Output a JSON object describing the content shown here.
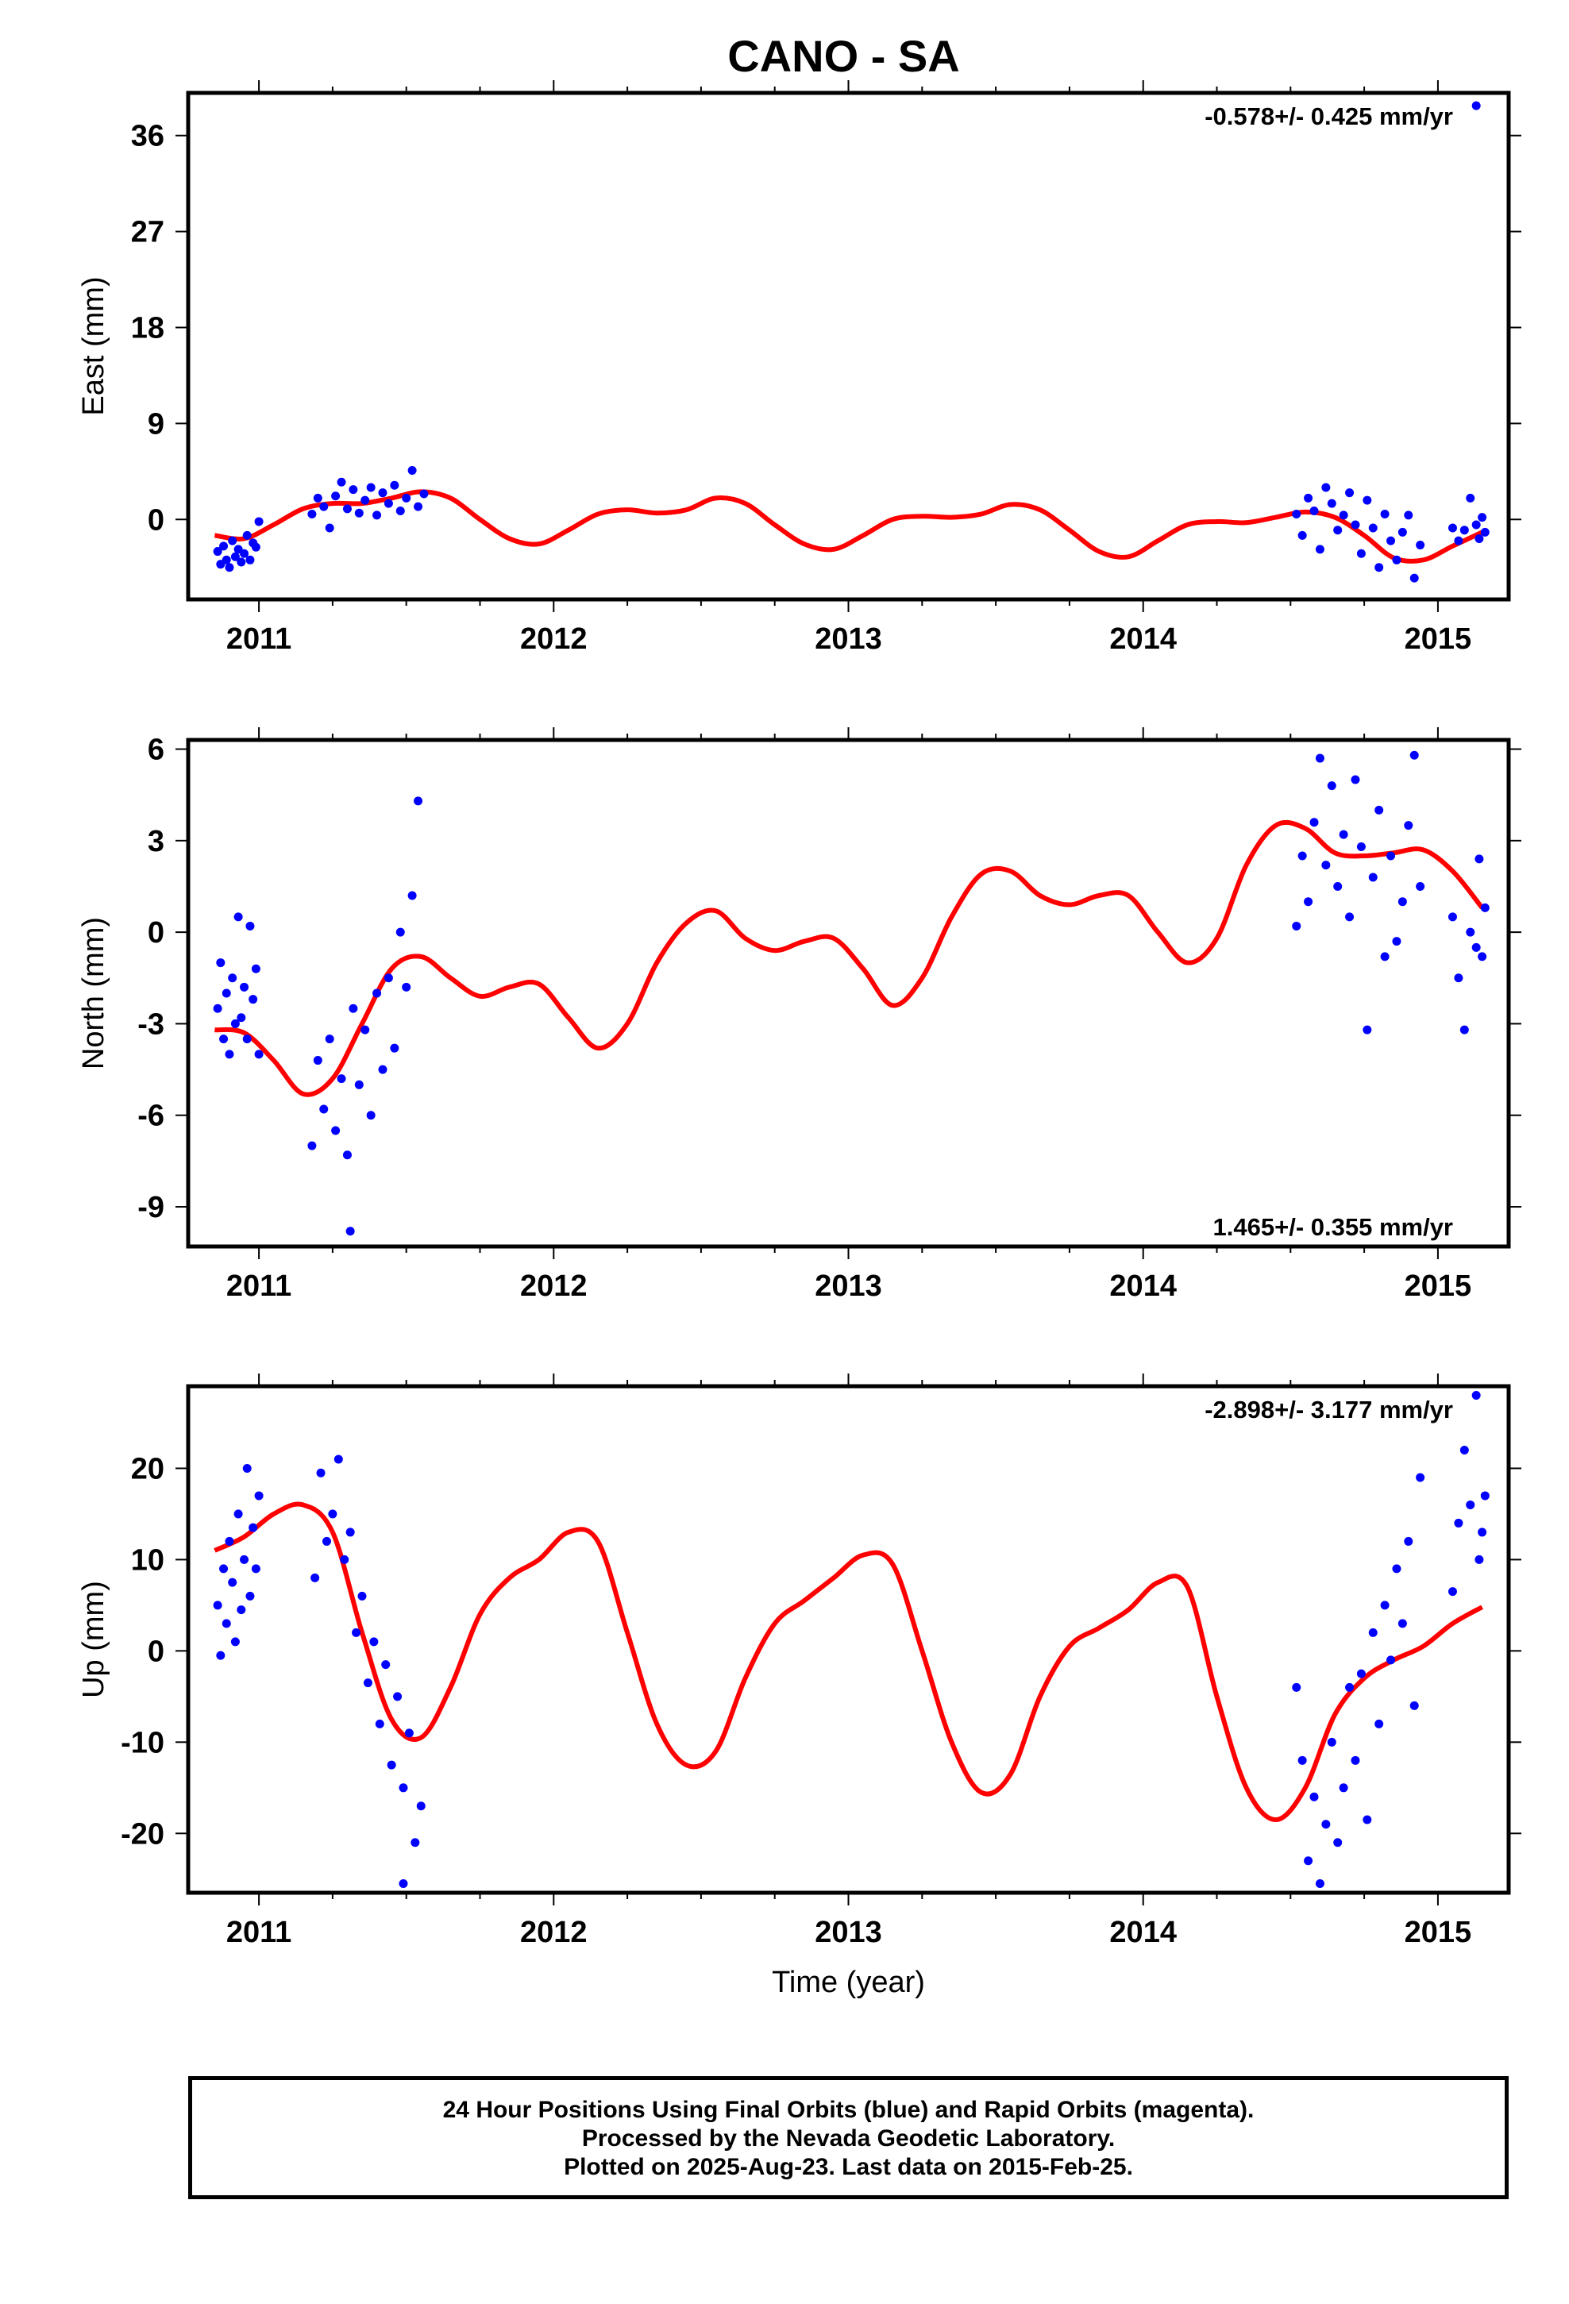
{
  "title": "CANO - SA",
  "chart_data": [
    {
      "type": "scatter",
      "ylabel": "East (mm)",
      "rate": "-0.578+/- 0.425 mm/yr",
      "rate_position": "top-right",
      "ylim": [
        -7.5,
        40
      ],
      "xlim": [
        2010.76,
        2015.24
      ],
      "yticks": [
        0,
        9,
        18,
        27,
        36
      ],
      "xticks": [
        2011,
        2012,
        2013,
        2014,
        2015
      ],
      "xlabel": "",
      "series": [
        {
          "role": "model fit",
          "color": "#ff0000",
          "x": [
            2010.85,
            2010.95,
            2011.05,
            2011.15,
            2011.25,
            2011.35,
            2011.45,
            2011.55,
            2011.65,
            2011.75,
            2011.85,
            2011.95,
            2012.05,
            2012.15,
            2012.25,
            2012.35,
            2012.45,
            2012.55,
            2012.65,
            2012.75,
            2012.85,
            2012.95,
            2013.05,
            2013.15,
            2013.25,
            2013.35,
            2013.45,
            2013.55,
            2013.65,
            2013.75,
            2013.85,
            2013.95,
            2014.05,
            2014.15,
            2014.25,
            2014.35,
            2014.45,
            2014.55,
            2014.65,
            2014.75,
            2014.85,
            2014.95,
            2015.05,
            2015.15
          ],
          "y": [
            -1.5,
            -1.8,
            -0.5,
            1.0,
            1.5,
            1.5,
            2.0,
            2.6,
            2.0,
            0.0,
            -1.8,
            -2.3,
            -1.0,
            0.5,
            0.9,
            0.6,
            0.9,
            2.0,
            1.5,
            -0.5,
            -2.3,
            -2.8,
            -1.5,
            0.0,
            0.3,
            0.2,
            0.5,
            1.4,
            0.9,
            -1.0,
            -3.0,
            -3.5,
            -2.0,
            -0.5,
            -0.2,
            -0.3,
            0.2,
            0.7,
            0.2,
            -1.5,
            -3.6,
            -3.8,
            -2.5,
            -1.2
          ]
        },
        {
          "role": "daily positions",
          "color": "#0000ff",
          "x": [
            2010.86,
            2010.87,
            2010.88,
            2010.89,
            2010.9,
            2010.91,
            2010.92,
            2010.93,
            2010.94,
            2010.95,
            2010.96,
            2010.97,
            2010.98,
            2010.99,
            2011.0,
            2011.18,
            2011.2,
            2011.22,
            2011.24,
            2011.26,
            2011.28,
            2011.3,
            2011.32,
            2011.34,
            2011.36,
            2011.38,
            2011.4,
            2011.42,
            2011.44,
            2011.46,
            2011.48,
            2011.5,
            2011.52,
            2011.54,
            2011.56,
            2014.52,
            2014.54,
            2014.56,
            2014.58,
            2014.6,
            2014.62,
            2014.64,
            2014.66,
            2014.68,
            2014.7,
            2014.72,
            2014.74,
            2014.76,
            2014.78,
            2014.8,
            2014.82,
            2014.84,
            2014.86,
            2014.88,
            2014.9,
            2014.92,
            2014.94,
            2015.05,
            2015.07,
            2015.09,
            2015.11,
            2015.13,
            2015.14,
            2015.15,
            2015.16
          ],
          "y": [
            -3.0,
            -4.2,
            -2.5,
            -3.8,
            -4.5,
            -2.0,
            -3.5,
            -2.8,
            -4.0,
            -3.2,
            -1.5,
            -3.8,
            -2.2,
            -2.6,
            -0.2,
            0.5,
            2.0,
            1.2,
            -0.8,
            2.2,
            3.5,
            1.0,
            2.8,
            0.6,
            1.8,
            3.0,
            0.4,
            2.5,
            1.5,
            3.2,
            0.8,
            2.0,
            4.6,
            1.2,
            2.4,
            0.5,
            -1.5,
            2.0,
            0.8,
            -2.8,
            3.0,
            1.5,
            -1.0,
            0.4,
            2.5,
            -0.5,
            -3.2,
            1.8,
            -0.8,
            -4.5,
            0.5,
            -2.0,
            -3.8,
            -1.2,
            0.4,
            -5.5,
            -2.4,
            -0.8,
            -2.0,
            -1.0,
            2.0,
            -0.5,
            -1.8,
            0.2,
            -1.2
          ]
        },
        {
          "role": "outlier",
          "color": "#0000ff",
          "x": [
            2015.13
          ],
          "y": [
            38.8
          ]
        }
      ]
    },
    {
      "type": "scatter",
      "ylabel": "North (mm)",
      "rate": "1.465+/- 0.355 mm/yr",
      "rate_position": "bottom-right",
      "ylim": [
        -10.3,
        6.3
      ],
      "xlim": [
        2010.76,
        2015.24
      ],
      "yticks": [
        -9,
        -6,
        -3,
        0,
        3,
        6
      ],
      "xticks": [
        2011,
        2012,
        2013,
        2014,
        2015
      ],
      "xlabel": "",
      "series": [
        {
          "role": "model fit",
          "color": "#ff0000",
          "x": [
            2010.85,
            2010.95,
            2011.05,
            2011.15,
            2011.25,
            2011.35,
            2011.45,
            2011.55,
            2011.65,
            2011.75,
            2011.85,
            2011.95,
            2012.05,
            2012.15,
            2012.25,
            2012.35,
            2012.45,
            2012.55,
            2012.65,
            2012.75,
            2012.85,
            2012.95,
            2013.05,
            2013.15,
            2013.25,
            2013.35,
            2013.45,
            2013.55,
            2013.65,
            2013.75,
            2013.85,
            2013.95,
            2014.05,
            2014.15,
            2014.25,
            2014.35,
            2014.45,
            2014.55,
            2014.65,
            2014.75,
            2014.85,
            2014.95,
            2015.05,
            2015.15
          ],
          "y": [
            -3.2,
            -3.3,
            -4.2,
            -5.3,
            -4.8,
            -3.0,
            -1.2,
            -0.8,
            -1.5,
            -2.1,
            -1.8,
            -1.7,
            -2.8,
            -3.8,
            -3.0,
            -1.0,
            0.3,
            0.7,
            -0.2,
            -0.6,
            -0.3,
            -0.2,
            -1.2,
            -2.4,
            -1.5,
            0.5,
            1.9,
            2.0,
            1.2,
            0.9,
            1.2,
            1.2,
            0.0,
            -1.0,
            -0.2,
            2.2,
            3.5,
            3.4,
            2.6,
            2.5,
            2.6,
            2.7,
            2.0,
            0.8
          ]
        },
        {
          "role": "daily positions",
          "color": "#0000ff",
          "x": [
            2010.86,
            2010.87,
            2010.88,
            2010.89,
            2010.9,
            2010.91,
            2010.92,
            2010.93,
            2010.94,
            2010.95,
            2010.96,
            2010.97,
            2010.98,
            2010.99,
            2011.0,
            2011.18,
            2011.2,
            2011.22,
            2011.24,
            2011.26,
            2011.28,
            2011.3,
            2011.32,
            2011.34,
            2011.36,
            2011.38,
            2011.4,
            2011.42,
            2011.44,
            2011.46,
            2011.48,
            2011.5,
            2011.52,
            2011.54,
            2014.52,
            2014.54,
            2014.56,
            2014.58,
            2014.6,
            2014.62,
            2014.64,
            2014.66,
            2014.68,
            2014.7,
            2014.72,
            2014.74,
            2014.76,
            2014.78,
            2014.8,
            2014.82,
            2014.84,
            2014.86,
            2014.88,
            2014.9,
            2014.92,
            2014.94,
            2015.05,
            2015.07,
            2015.09,
            2015.11,
            2015.13,
            2015.14,
            2015.15,
            2015.16
          ],
          "y": [
            -2.5,
            -1.0,
            -3.5,
            -2.0,
            -4.0,
            -1.5,
            -3.0,
            0.5,
            -2.8,
            -1.8,
            -3.5,
            0.2,
            -2.2,
            -1.2,
            -4.0,
            -7.0,
            -4.2,
            -5.8,
            -3.5,
            -6.5,
            -4.8,
            -7.3,
            -2.5,
            -5.0,
            -3.2,
            -6.0,
            -2.0,
            -4.5,
            -1.5,
            -3.8,
            0.0,
            -1.8,
            1.2,
            4.3,
            0.2,
            2.5,
            1.0,
            3.6,
            5.7,
            2.2,
            4.8,
            1.5,
            3.2,
            0.5,
            5.0,
            2.8,
            -3.2,
            1.8,
            4.0,
            -0.8,
            2.5,
            -0.3,
            1.0,
            3.5,
            5.8,
            1.5,
            0.5,
            -1.5,
            -3.2,
            0.0,
            -0.5,
            2.4,
            -0.8,
            0.8
          ]
        },
        {
          "role": "outlier",
          "color": "#0000ff",
          "x": [
            2011.31
          ],
          "y": [
            -9.8
          ]
        }
      ]
    },
    {
      "type": "scatter",
      "ylabel": "Up (mm)",
      "rate": "-2.898+/- 3.177 mm/yr",
      "rate_position": "top-right",
      "ylim": [
        -26.5,
        29
      ],
      "xlim": [
        2010.76,
        2015.24
      ],
      "yticks": [
        -20,
        -10,
        0,
        10,
        20
      ],
      "xticks": [
        2011,
        2012,
        2013,
        2014,
        2015
      ],
      "xlabel": "Time (year)",
      "series": [
        {
          "role": "model fit",
          "color": "#ff0000",
          "x": [
            2010.85,
            2010.95,
            2011.05,
            2011.15,
            2011.25,
            2011.35,
            2011.45,
            2011.55,
            2011.65,
            2011.75,
            2011.85,
            2011.95,
            2012.05,
            2012.15,
            2012.25,
            2012.35,
            2012.45,
            2012.55,
            2012.65,
            2012.75,
            2012.85,
            2012.95,
            2013.05,
            2013.15,
            2013.25,
            2013.35,
            2013.45,
            2013.55,
            2013.65,
            2013.75,
            2013.85,
            2013.95,
            2014.05,
            2014.15,
            2014.25,
            2014.35,
            2014.45,
            2014.55,
            2014.65,
            2014.75,
            2014.85,
            2014.95,
            2015.05,
            2015.15
          ],
          "y": [
            11.0,
            12.5,
            15.0,
            16.0,
            13.0,
            2.0,
            -7.5,
            -9.5,
            -4.0,
            4.0,
            8.0,
            10.0,
            13.0,
            12.0,
            2.0,
            -8.0,
            -12.5,
            -11.0,
            -3.0,
            3.0,
            5.5,
            8.0,
            10.5,
            9.5,
            0.0,
            -10.0,
            -15.5,
            -13.5,
            -5.0,
            0.5,
            2.5,
            4.5,
            7.5,
            7.0,
            -5.0,
            -15.0,
            -18.5,
            -15.0,
            -7.0,
            -3.0,
            -1.0,
            0.5,
            3.0,
            4.8
          ]
        },
        {
          "role": "daily positions",
          "color": "#0000ff",
          "x": [
            2010.86,
            2010.87,
            2010.88,
            2010.89,
            2010.9,
            2010.91,
            2010.92,
            2010.93,
            2010.94,
            2010.95,
            2010.96,
            2010.97,
            2010.98,
            2010.99,
            2011.0,
            2011.19,
            2011.21,
            2011.23,
            2011.25,
            2011.27,
            2011.29,
            2011.31,
            2011.33,
            2011.35,
            2011.37,
            2011.39,
            2011.41,
            2011.43,
            2011.45,
            2011.47,
            2011.49,
            2011.51,
            2011.53,
            2011.55,
            2014.52,
            2014.54,
            2014.56,
            2014.58,
            2014.6,
            2014.62,
            2014.64,
            2014.66,
            2014.68,
            2014.7,
            2014.72,
            2014.74,
            2014.76,
            2014.78,
            2014.8,
            2014.82,
            2014.84,
            2014.86,
            2014.88,
            2014.9,
            2014.92,
            2014.94,
            2015.05,
            2015.07,
            2015.09,
            2015.11,
            2015.13,
            2015.14,
            2015.15,
            2015.16
          ],
          "y": [
            5.0,
            -0.5,
            9.0,
            3.0,
            12.0,
            7.5,
            1.0,
            15.0,
            4.5,
            10.0,
            20.0,
            6.0,
            13.5,
            9.0,
            17.0,
            8.0,
            19.5,
            12.0,
            15.0,
            21.0,
            10.0,
            13.0,
            2.0,
            6.0,
            -3.5,
            1.0,
            -8.0,
            -1.5,
            -12.5,
            -5.0,
            -15.0,
            -9.0,
            -21.0,
            -17.0,
            -4.0,
            -12.0,
            -23.0,
            -16.0,
            -25.5,
            -19.0,
            -10.0,
            -21.0,
            -15.0,
            -4.0,
            -12.0,
            -2.5,
            -18.5,
            2.0,
            -8.0,
            5.0,
            -1.0,
            9.0,
            3.0,
            12.0,
            -6.0,
            19.0,
            6.5,
            14.0,
            22.0,
            16.0,
            28.0,
            10.0,
            13.0,
            17.0
          ]
        },
        {
          "role": "outlier",
          "color": "#0000ff",
          "x": [
            2011.49
          ],
          "y": [
            -25.5
          ]
        }
      ]
    }
  ],
  "caption": {
    "line1": "24 Hour Positions Using Final Orbits (blue) and Rapid Orbits (magenta).",
    "line2": "Processed by the Nevada Geodetic Laboratory.",
    "line3": "Plotted on 2025-Aug-23. Last data on 2015-Feb-25."
  }
}
